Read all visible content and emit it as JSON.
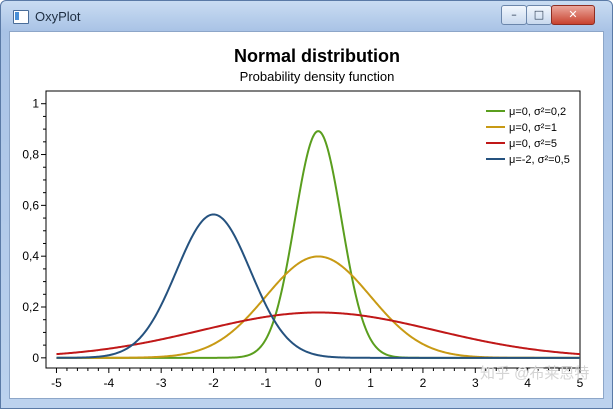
{
  "window": {
    "title": "OxyPlot",
    "minimize_glyph": "–",
    "maximize_glyph": "□",
    "close_glyph": "✕",
    "app_icon": "window-app-icon"
  },
  "chart_data": {
    "type": "line",
    "title": "Normal distribution",
    "subtitle": "Probability density function",
    "xlabel": "",
    "ylabel": "",
    "xlim": [
      -5.2,
      5.0
    ],
    "ylim": [
      -0.04,
      1.05
    ],
    "x_ticks": [
      -5,
      -4,
      -3,
      -2,
      -1,
      0,
      1,
      2,
      3,
      4,
      5
    ],
    "y_ticks": [
      0,
      0.2,
      0.4,
      0.6,
      0.8,
      1
    ],
    "x_tick_labels": [
      "-5",
      "-4",
      "-3",
      "-2",
      "-1",
      "0",
      "1",
      "2",
      "3",
      "4",
      "5"
    ],
    "y_tick_labels": [
      "0",
      "0,2",
      "0,4",
      "0,6",
      "0,8",
      "1"
    ],
    "grid": false,
    "legend_position": "top-right",
    "series": [
      {
        "name": "μ=0, σ²=0,2",
        "mu": 0,
        "variance": 0.2,
        "color": "#5a9e1e",
        "x": [
          -5,
          -2,
          -1.5,
          -1,
          -0.75,
          -0.5,
          -0.25,
          0,
          0.25,
          0.5,
          0.75,
          1,
          1.5,
          2,
          5
        ],
        "y": [
          0,
          0,
          0.003,
          0.073,
          0.22,
          0.479,
          0.763,
          0.892,
          0.763,
          0.479,
          0.22,
          0.073,
          0.003,
          0,
          0
        ]
      },
      {
        "name": "μ=0, σ²=1",
        "mu": 0,
        "variance": 1,
        "color": "#c89a14",
        "x": [
          -5,
          -4,
          -3,
          -2,
          -1.5,
          -1,
          -0.5,
          0,
          0.5,
          1,
          1.5,
          2,
          3,
          4,
          5
        ],
        "y": [
          0,
          0,
          0.004,
          0.054,
          0.13,
          0.242,
          0.352,
          0.399,
          0.352,
          0.242,
          0.13,
          0.054,
          0.004,
          0,
          0
        ]
      },
      {
        "name": "μ=0, σ²=5",
        "mu": 0,
        "variance": 5,
        "color": "#c01818",
        "x": [
          -5,
          -4,
          -3,
          -2,
          -1,
          0,
          1,
          2,
          3,
          4,
          5
        ],
        "y": [
          0.015,
          0.036,
          0.073,
          0.12,
          0.161,
          0.178,
          0.161,
          0.12,
          0.073,
          0.036,
          0.015
        ]
      },
      {
        "name": "μ=-2, σ²=0,5",
        "mu": -2,
        "variance": 0.5,
        "color": "#25527f",
        "x": [
          -5,
          -4,
          -3.5,
          -3,
          -2.5,
          -2,
          -1.5,
          -1,
          -0.5,
          0,
          1,
          5
        ],
        "y": [
          0,
          0.01,
          0.059,
          0.208,
          0.439,
          0.564,
          0.439,
          0.208,
          0.059,
          0.01,
          0,
          0
        ]
      }
    ]
  },
  "watermark": "知乎 @布莱恩特"
}
